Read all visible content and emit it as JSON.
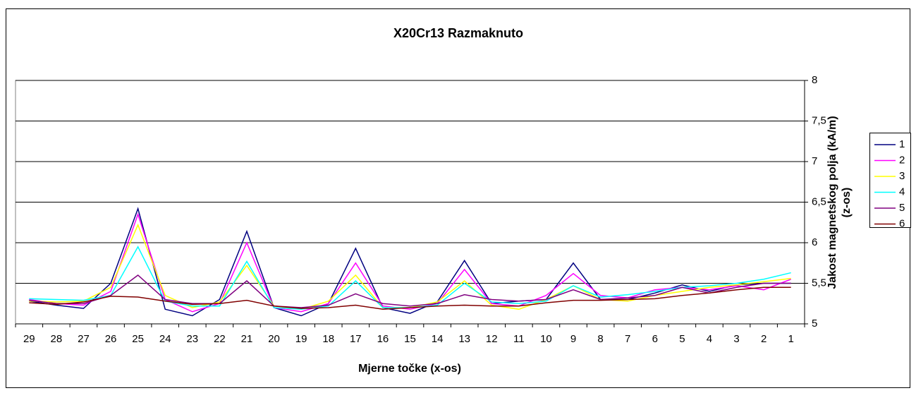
{
  "chart_data": {
    "type": "line",
    "title": "X20Cr13 Razmaknuto",
    "x_label": "Mjerne točke (x-os)",
    "y_label": [
      "Jakost magnetskog polja (kA/m)",
      "(z-os)"
    ],
    "categories": [
      "29",
      "28",
      "27",
      "26",
      "25",
      "24",
      "23",
      "22",
      "21",
      "20",
      "19",
      "18",
      "17",
      "16",
      "15",
      "14",
      "13",
      "12",
      "11",
      "10",
      "9",
      "8",
      "7",
      "6",
      "5",
      "4",
      "3",
      "2",
      "1"
    ],
    "ylim": [
      5,
      8
    ],
    "yticks": [
      5,
      {
        "value": 5.5,
        "label": "5,5"
      },
      6,
      {
        "value": 6.5,
        "label": "6,5"
      },
      7,
      {
        "value": 7.5,
        "label": "7,5"
      },
      8
    ],
    "grid": true,
    "legend": "right",
    "series": [
      {
        "name": "1",
        "color": "#000080",
        "values": [
          5.28,
          5.23,
          5.19,
          5.5,
          6.42,
          5.18,
          5.1,
          5.3,
          6.14,
          5.2,
          5.1,
          5.25,
          5.93,
          5.2,
          5.13,
          5.27,
          5.78,
          5.25,
          5.28,
          5.3,
          5.75,
          5.3,
          5.3,
          5.38,
          5.48,
          5.4,
          5.48,
          5.5,
          5.5
        ]
      },
      {
        "name": "2",
        "color": "#ff00ff",
        "values": [
          5.3,
          5.25,
          5.23,
          5.4,
          6.35,
          5.3,
          5.15,
          5.25,
          6.0,
          5.2,
          5.15,
          5.25,
          5.75,
          5.22,
          5.18,
          5.25,
          5.67,
          5.25,
          5.22,
          5.35,
          5.62,
          5.35,
          5.32,
          5.42,
          5.45,
          5.42,
          5.47,
          5.42,
          5.55
        ]
      },
      {
        "name": "3",
        "color": "#ffff00",
        "values": [
          5.28,
          5.27,
          5.28,
          5.45,
          6.22,
          5.35,
          5.2,
          5.27,
          5.72,
          5.22,
          5.18,
          5.28,
          5.6,
          5.2,
          5.2,
          5.27,
          5.53,
          5.23,
          5.18,
          5.3,
          5.47,
          5.3,
          5.28,
          5.35,
          5.4,
          5.45,
          5.48,
          5.52,
          5.56
        ]
      },
      {
        "name": "4",
        "color": "#00ffff",
        "values": [
          5.31,
          5.3,
          5.29,
          5.35,
          5.95,
          5.28,
          5.22,
          5.22,
          5.77,
          5.2,
          5.18,
          5.22,
          5.53,
          5.2,
          5.2,
          5.23,
          5.5,
          5.27,
          5.25,
          5.28,
          5.47,
          5.33,
          5.36,
          5.4,
          5.45,
          5.47,
          5.5,
          5.55,
          5.63
        ]
      },
      {
        "name": "5",
        "color": "#800080",
        "values": [
          5.29,
          5.25,
          5.25,
          5.35,
          5.6,
          5.3,
          5.25,
          5.25,
          5.53,
          5.22,
          5.2,
          5.23,
          5.37,
          5.25,
          5.22,
          5.25,
          5.36,
          5.3,
          5.28,
          5.3,
          5.42,
          5.3,
          5.32,
          5.35,
          5.45,
          5.38,
          5.45,
          5.5,
          5.5
        ]
      },
      {
        "name": "6",
        "color": "#800000",
        "values": [
          5.26,
          5.24,
          5.27,
          5.34,
          5.33,
          5.28,
          5.24,
          5.25,
          5.29,
          5.22,
          5.19,
          5.2,
          5.23,
          5.18,
          5.2,
          5.22,
          5.23,
          5.22,
          5.22,
          5.26,
          5.29,
          5.29,
          5.3,
          5.31,
          5.35,
          5.38,
          5.42,
          5.45,
          5.45
        ]
      }
    ]
  }
}
